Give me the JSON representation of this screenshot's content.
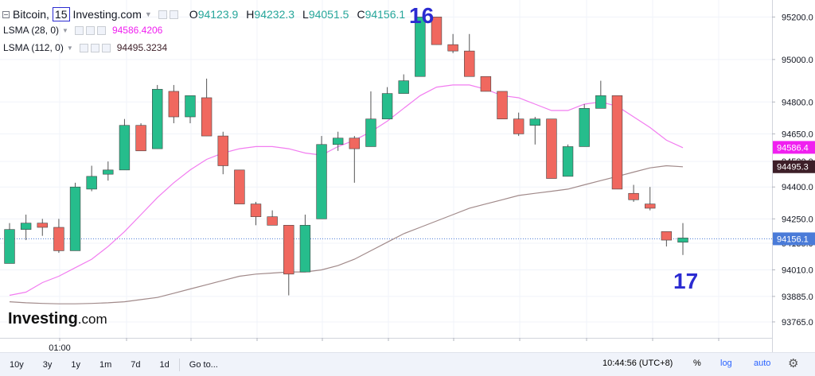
{
  "legend": {
    "symbol": "Bitcoin,",
    "interval": "15",
    "source": "Investing.com",
    "o_label": "O",
    "o_value": "94123.9",
    "h_label": "H",
    "h_value": "94232.3",
    "l_label": "L",
    "l_value": "94051.5",
    "c_label": "C",
    "c_value": "94156.1",
    "lsma28_label": "LSMA (28, 0)",
    "lsma28_value": "94586.4206",
    "lsma112_label": "LSMA (112, 0)",
    "lsma112_value": "94495.3234"
  },
  "annotations": {
    "marker_16": "16",
    "marker_17": "17"
  },
  "logo": {
    "main": "Investing",
    "suffix": ".com"
  },
  "bottom_bar": {
    "ranges": [
      "10y",
      "3y",
      "1y",
      "1m",
      "7d",
      "1d"
    ],
    "goto": "Go to...",
    "time": "10:44:56 (UTC+8)",
    "percent": "%",
    "log": "log",
    "auto": "auto"
  },
  "colors": {
    "up": "#26bd8c",
    "down": "#f0685f",
    "lsma28": "#f27cf0",
    "lsma112": "#a18a8a",
    "price_line": "#4a7bd8"
  },
  "chart_data": {
    "type": "candlestick",
    "x_tick_labels": [
      "01:00"
    ],
    "y_ticks": [
      93765,
      93885,
      94010,
      94135,
      94250,
      94400,
      94520,
      94650,
      94800,
      95000,
      95200
    ],
    "y_tick_labels": [
      "93765.0",
      "93885.0",
      "94010.0",
      "94135.0",
      "94250.0",
      "94400.0",
      "94520.0",
      "94650.0",
      "94800.0",
      "95000.0",
      "95200.0"
    ],
    "ylim": [
      93690,
      95280
    ],
    "price_badges": [
      {
        "label": "94586.4",
        "value": 94586.4,
        "color": "#f020f0"
      },
      {
        "label": "94495.3",
        "value": 94495.3,
        "color": "#3d1f28"
      },
      {
        "label": "94156.1",
        "value": 94156.1,
        "color": "#4a7bd8"
      }
    ],
    "candles": [
      {
        "o": 94040,
        "h": 94230,
        "l": 94040,
        "c": 94200
      },
      {
        "o": 94200,
        "h": 94270,
        "l": 94150,
        "c": 94230
      },
      {
        "o": 94230,
        "h": 94250,
        "l": 94170,
        "c": 94210
      },
      {
        "o": 94210,
        "h": 94250,
        "l": 94090,
        "c": 94100
      },
      {
        "o": 94100,
        "h": 94420,
        "l": 94100,
        "c": 94400
      },
      {
        "o": 94390,
        "h": 94500,
        "l": 94380,
        "c": 94450
      },
      {
        "o": 94460,
        "h": 94520,
        "l": 94430,
        "c": 94480
      },
      {
        "o": 94480,
        "h": 94720,
        "l": 94480,
        "c": 94690
      },
      {
        "o": 94690,
        "h": 94700,
        "l": 94570,
        "c": 94570
      },
      {
        "o": 94580,
        "h": 94880,
        "l": 94580,
        "c": 94860
      },
      {
        "o": 94850,
        "h": 94880,
        "l": 94700,
        "c": 94730
      },
      {
        "o": 94730,
        "h": 94830,
        "l": 94700,
        "c": 94830
      },
      {
        "o": 94820,
        "h": 94910,
        "l": 94640,
        "c": 94640
      },
      {
        "o": 94640,
        "h": 94660,
        "l": 94460,
        "c": 94500
      },
      {
        "o": 94480,
        "h": 94480,
        "l": 94320,
        "c": 94320
      },
      {
        "o": 94320,
        "h": 94330,
        "l": 94220,
        "c": 94260
      },
      {
        "o": 94260,
        "h": 94290,
        "l": 94220,
        "c": 94220
      },
      {
        "o": 94220,
        "h": 94220,
        "l": 93890,
        "c": 93990
      },
      {
        "o": 94000,
        "h": 94270,
        "l": 94000,
        "c": 94220
      },
      {
        "o": 94250,
        "h": 94640,
        "l": 94250,
        "c": 94600
      },
      {
        "o": 94600,
        "h": 94660,
        "l": 94570,
        "c": 94630
      },
      {
        "o": 94630,
        "h": 94640,
        "l": 94420,
        "c": 94580
      },
      {
        "o": 94590,
        "h": 94850,
        "l": 94590,
        "c": 94720
      },
      {
        "o": 94720,
        "h": 94870,
        "l": 94720,
        "c": 94840
      },
      {
        "o": 94840,
        "h": 94930,
        "l": 94840,
        "c": 94900
      },
      {
        "o": 94920,
        "h": 95200,
        "l": 94920,
        "c": 95200
      },
      {
        "o": 95200,
        "h": 95200,
        "l": 95070,
        "c": 95070
      },
      {
        "o": 95070,
        "h": 95120,
        "l": 95030,
        "c": 95040
      },
      {
        "o": 95040,
        "h": 95120,
        "l": 94920,
        "c": 94920
      },
      {
        "o": 94920,
        "h": 94920,
        "l": 94850,
        "c": 94850
      },
      {
        "o": 94850,
        "h": 94850,
        "l": 94720,
        "c": 94720
      },
      {
        "o": 94720,
        "h": 94750,
        "l": 94640,
        "c": 94650
      },
      {
        "o": 94690,
        "h": 94730,
        "l": 94600,
        "c": 94720
      },
      {
        "o": 94720,
        "h": 94720,
        "l": 94440,
        "c": 94440
      },
      {
        "o": 94450,
        "h": 94600,
        "l": 94450,
        "c": 94590
      },
      {
        "o": 94590,
        "h": 94790,
        "l": 94590,
        "c": 94770
      },
      {
        "o": 94770,
        "h": 94900,
        "l": 94770,
        "c": 94830
      },
      {
        "o": 94830,
        "h": 94830,
        "l": 94390,
        "c": 94390
      },
      {
        "o": 94370,
        "h": 94410,
        "l": 94330,
        "c": 94340
      },
      {
        "o": 94320,
        "h": 94400,
        "l": 94290,
        "c": 94300
      },
      {
        "o": 94190,
        "h": 94190,
        "l": 94120,
        "c": 94150
      },
      {
        "o": 94140,
        "h": 94230,
        "l": 94080,
        "c": 94160
      }
    ],
    "candle_x_index": [
      0,
      1,
      2,
      3,
      4,
      5,
      6,
      7,
      8,
      9,
      10,
      11,
      12,
      13,
      14,
      15,
      16,
      17,
      18,
      19,
      20,
      21,
      22,
      23,
      24,
      25,
      26,
      27,
      28,
      29,
      30,
      31,
      32,
      33,
      34,
      35,
      36,
      37,
      38,
      39,
      40,
      41
    ],
    "lsma28": [
      93890,
      93905,
      93950,
      93980,
      94020,
      94060,
      94120,
      94190,
      94270,
      94350,
      94420,
      94480,
      94530,
      94560,
      94580,
      94590,
      94590,
      94580,
      94560,
      94550,
      94590,
      94620,
      94660,
      94710,
      94770,
      94830,
      94870,
      94880,
      94880,
      94860,
      94830,
      94820,
      94790,
      94760,
      94760,
      94790,
      94800,
      94780,
      94730,
      94680,
      94620,
      94585
    ],
    "lsma112": [
      93860,
      93855,
      93852,
      93850,
      93850,
      93852,
      93855,
      93860,
      93870,
      93880,
      93900,
      93920,
      93940,
      93960,
      93980,
      93990,
      93995,
      94000,
      94000,
      94010,
      94030,
      94060,
      94100,
      94140,
      94180,
      94210,
      94240,
      94270,
      94300,
      94320,
      94340,
      94360,
      94370,
      94380,
      94390,
      94410,
      94430,
      94450,
      94470,
      94490,
      94500,
      94495
    ]
  }
}
